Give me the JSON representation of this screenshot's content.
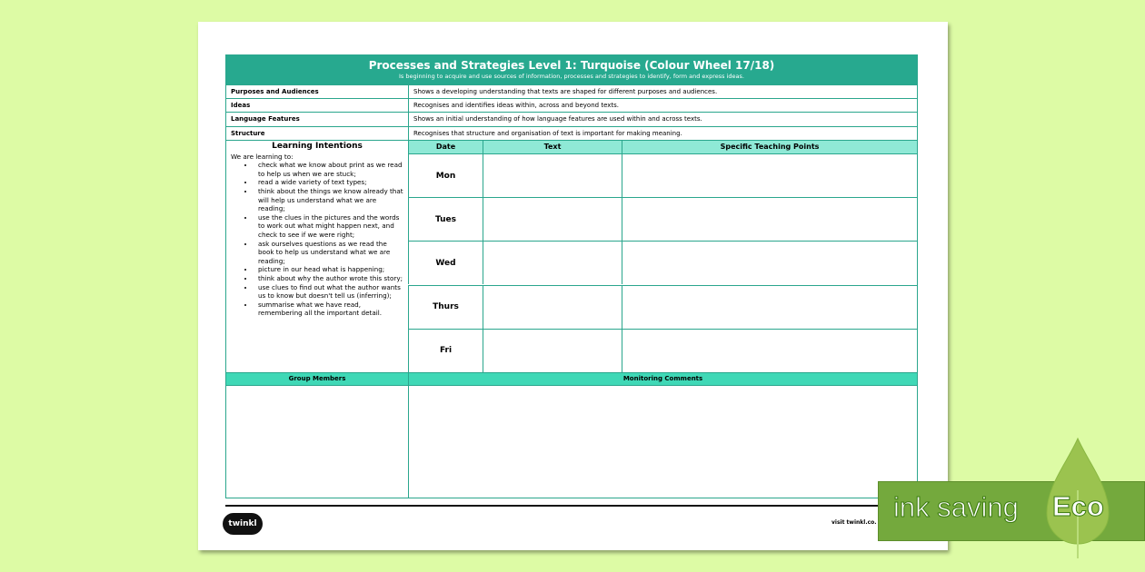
{
  "title": "Processes and Strategies Level 1: Turquoise (Colour Wheel 17/18)",
  "subtitle": "Is beginning to acquire and use sources of information, processes and strategies to identify, form and express ideas.",
  "criteria": [
    {
      "label": "Purposes and Audiences",
      "text": "Shows a developing understanding that texts are shaped for different purposes and audiences."
    },
    {
      "label": "Ideas",
      "text": "Recognises and identifies ideas within, across and beyond texts."
    },
    {
      "label": "Language Features",
      "text": "Shows an initial understanding of how language features are used within and across texts."
    },
    {
      "label": "Structure",
      "text": "Recognises that structure and organisation of text is important for making meaning."
    }
  ],
  "learning": {
    "heading": "Learning Intentions",
    "intro": "We are learning to:",
    "items": [
      "check what we know about print as we read to help us when we are stuck;",
      "read a wide variety of text types;",
      "think about the things we know already that will help us understand what we are reading;",
      "use the clues in the pictures and the words to work out what might happen next, and check to see if we were right;",
      "ask ourselves questions as we read the book to help us understand what we are reading;",
      "picture in our head what is happening;",
      "think about why the author wrote this story;",
      "use clues to find out what the author wants us to know but doesn't tell us (inferring);",
      "summarise what we have read, remembering all the important detail."
    ]
  },
  "columns": {
    "date": "Date",
    "text": "Text",
    "points": "Specific Teaching Points"
  },
  "days": [
    "Mon",
    "Tues",
    "Wed",
    "Thurs",
    "Fri"
  ],
  "bottom": {
    "group": "Group Members",
    "comments": "Monitoring Comments"
  },
  "footer": {
    "logo": "twinkl",
    "link": "visit twinkl.co."
  },
  "eco": {
    "label": "ink saving",
    "badge": "Eco"
  },
  "colors": {
    "teal": "#27a98f",
    "light_teal": "#8fe9d6",
    "background": "#ddfba5",
    "eco_green": "#74a93d"
  }
}
